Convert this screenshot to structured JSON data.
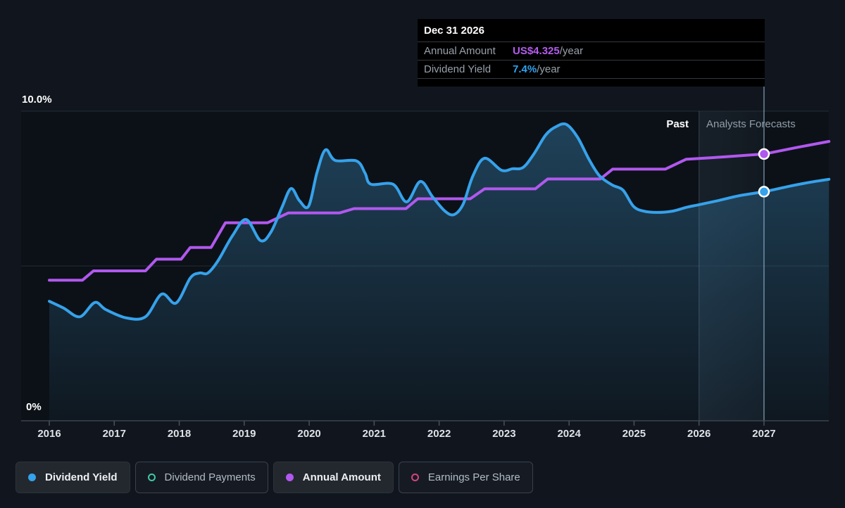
{
  "tooltip": {
    "date": "Dec 31 2026",
    "rows": [
      {
        "label": "Annual Amount",
        "value": "US$4.325",
        "suffix": "/year",
        "value_color": "#b55cf0"
      },
      {
        "label": "Dividend Yield",
        "value": "7.4%",
        "suffix": "/year",
        "value_color": "#2ea3f2"
      }
    ]
  },
  "annotations": {
    "past": "Past",
    "forecast": "Analysts Forecasts"
  },
  "axis": {
    "y_top_label": "10.0%",
    "y_bottom_label": "0%",
    "years": [
      "2016",
      "2017",
      "2018",
      "2019",
      "2020",
      "2021",
      "2022",
      "2023",
      "2024",
      "2025",
      "2026",
      "2027"
    ]
  },
  "legend": [
    {
      "label": "Dividend Yield",
      "color": "#36a2eb",
      "filled": true,
      "active": true
    },
    {
      "label": "Dividend Payments",
      "color": "#3fc9a5",
      "filled": false,
      "active": false
    },
    {
      "label": "Annual Amount",
      "color": "#b158ef",
      "filled": true,
      "active": true
    },
    {
      "label": "Earnings Per Share",
      "color": "#d5447e",
      "filled": false,
      "active": false
    }
  ],
  "chart_data": {
    "type": "line",
    "title": "Dividend yield history and analysts forecast",
    "x_range": [
      2016,
      2028
    ],
    "y_axis": {
      "min_pct": 0,
      "max_pct": 10,
      "gridlines_pct": [
        5,
        10
      ],
      "grid": true
    },
    "past_until_year": 2026,
    "forecast_region": [
      2026,
      2028
    ],
    "hover_point": {
      "date": "Dec 31 2026",
      "year": 2027.0,
      "dividend_yield_pct": 7.4,
      "annual_amount_usd": 4.325
    },
    "amount_axis_scale_pct_per_usd": 1.992,
    "colors": {
      "dividend_yield": "#36a2eb",
      "annual_amount": "#b158ef",
      "area_fill_top": "rgba(64,150,205,0.38)",
      "area_fill_bottom": "rgba(64,150,205,0.05)",
      "hover_line": "rgba(158,192,218,0.65)",
      "divider_line": "rgba(150,172,194,0.30)"
    },
    "series": [
      {
        "name": "Dividend Yield",
        "unit": "%",
        "style": "smooth",
        "points": [
          [
            2016.0,
            3.86
          ],
          [
            2016.22,
            3.64
          ],
          [
            2016.47,
            3.36
          ],
          [
            2016.7,
            3.82
          ],
          [
            2016.87,
            3.59
          ],
          [
            2017.19,
            3.32
          ],
          [
            2017.48,
            3.36
          ],
          [
            2017.73,
            4.09
          ],
          [
            2017.95,
            3.8
          ],
          [
            2018.17,
            4.61
          ],
          [
            2018.31,
            4.77
          ],
          [
            2018.44,
            4.77
          ],
          [
            2018.6,
            5.18
          ],
          [
            2018.82,
            5.98
          ],
          [
            2019.03,
            6.5
          ],
          [
            2019.25,
            5.82
          ],
          [
            2019.41,
            6.09
          ],
          [
            2019.58,
            6.89
          ],
          [
            2019.72,
            7.5
          ],
          [
            2019.85,
            7.11
          ],
          [
            2019.99,
            6.93
          ],
          [
            2020.12,
            8.02
          ],
          [
            2020.25,
            8.75
          ],
          [
            2020.4,
            8.41
          ],
          [
            2020.73,
            8.39
          ],
          [
            2020.86,
            8.0
          ],
          [
            2020.95,
            7.64
          ],
          [
            2021.29,
            7.64
          ],
          [
            2021.5,
            7.07
          ],
          [
            2021.71,
            7.73
          ],
          [
            2021.9,
            7.23
          ],
          [
            2022.09,
            6.77
          ],
          [
            2022.23,
            6.66
          ],
          [
            2022.37,
            7.0
          ],
          [
            2022.52,
            7.91
          ],
          [
            2022.7,
            8.48
          ],
          [
            2022.96,
            8.09
          ],
          [
            2023.13,
            8.14
          ],
          [
            2023.29,
            8.18
          ],
          [
            2023.45,
            8.59
          ],
          [
            2023.64,
            9.23
          ],
          [
            2023.8,
            9.5
          ],
          [
            2023.96,
            9.57
          ],
          [
            2024.13,
            9.16
          ],
          [
            2024.31,
            8.43
          ],
          [
            2024.47,
            7.91
          ],
          [
            2024.67,
            7.61
          ],
          [
            2024.83,
            7.45
          ],
          [
            2024.99,
            6.93
          ],
          [
            2025.15,
            6.77
          ],
          [
            2025.35,
            6.73
          ],
          [
            2025.59,
            6.77
          ],
          [
            2025.8,
            6.89
          ],
          [
            2026.0,
            6.98
          ],
          [
            2026.29,
            7.11
          ],
          [
            2026.62,
            7.27
          ],
          [
            2027.0,
            7.4
          ],
          [
            2027.38,
            7.57
          ],
          [
            2027.7,
            7.7
          ],
          [
            2028.0,
            7.8
          ]
        ]
      },
      {
        "name": "Annual Amount",
        "unit": "US$/year",
        "style": "step",
        "points": [
          [
            2016.0,
            2.28
          ],
          [
            2016.51,
            2.28
          ],
          [
            2016.68,
            2.43
          ],
          [
            2017.48,
            2.43
          ],
          [
            2017.65,
            2.62
          ],
          [
            2018.03,
            2.62
          ],
          [
            2018.17,
            2.81
          ],
          [
            2018.49,
            2.81
          ],
          [
            2018.71,
            3.21
          ],
          [
            2019.36,
            3.21
          ],
          [
            2019.68,
            3.37
          ],
          [
            2020.47,
            3.37
          ],
          [
            2020.69,
            3.44
          ],
          [
            2021.49,
            3.44
          ],
          [
            2021.67,
            3.6
          ],
          [
            2022.48,
            3.6
          ],
          [
            2022.7,
            3.76
          ],
          [
            2023.48,
            3.76
          ],
          [
            2023.67,
            3.92
          ],
          [
            2024.48,
            3.92
          ],
          [
            2024.67,
            4.08
          ],
          [
            2025.48,
            4.08
          ],
          [
            2025.8,
            4.24
          ],
          [
            2026.4,
            4.28
          ],
          [
            2027.0,
            4.325
          ],
          [
            2027.5,
            4.43
          ],
          [
            2028.0,
            4.53
          ]
        ]
      }
    ]
  }
}
